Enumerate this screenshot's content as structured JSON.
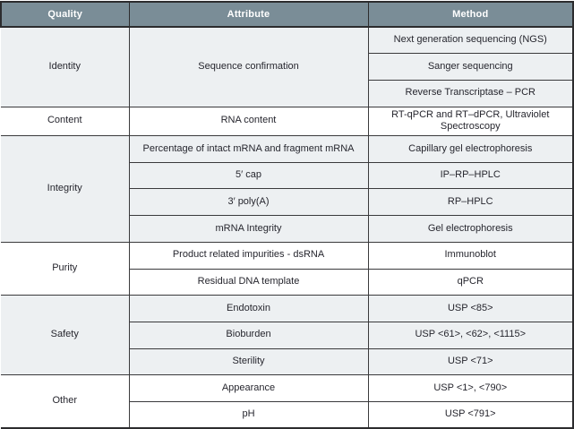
{
  "colors": {
    "header_bg": "#7a8d97",
    "header_text": "#ffffff",
    "alt_row_bg": "#edf0f2",
    "plain_row_bg": "#ffffff",
    "border": "#2c2c2e",
    "body_text": "#26262e"
  },
  "table": {
    "headers": [
      "Quality",
      "Attribute",
      "Method"
    ],
    "groups": [
      {
        "quality": "Identity",
        "rows": [
          {
            "attribute": "Sequence confirmation",
            "method": "Next generation sequencing (NGS)"
          },
          {
            "method": "Sanger sequencing"
          },
          {
            "method": "Reverse Transcriptase – PCR"
          }
        ]
      },
      {
        "quality": "Content",
        "rows": [
          {
            "attribute": "RNA content",
            "method": "RT-qPCR and RT–dPCR, Ultraviolet Spectroscopy"
          }
        ]
      },
      {
        "quality": "Integrity",
        "rows": [
          {
            "attribute": "Percentage of intact mRNA and fragment mRNA",
            "method": "Capillary gel electrophoresis"
          },
          {
            "attribute": "5′ cap",
            "method": "IP–RP–HPLC"
          },
          {
            "attribute": "3′ poly(A)",
            "method": "RP–HPLC"
          },
          {
            "attribute": "mRNA Integrity",
            "method": "Gel electrophoresis"
          }
        ]
      },
      {
        "quality": "Purity",
        "rows": [
          {
            "attribute": "Product related impurities - dsRNA",
            "method": "Immunoblot"
          },
          {
            "attribute": "Residual DNA template",
            "method": "qPCR"
          }
        ]
      },
      {
        "quality": "Safety",
        "rows": [
          {
            "attribute": "Endotoxin",
            "method": "USP <85>"
          },
          {
            "attribute": "Bioburden",
            "method": "USP <61>, <62>, <1115>"
          },
          {
            "attribute": "Sterility",
            "method": "USP <71>"
          }
        ]
      },
      {
        "quality": "Other",
        "rows": [
          {
            "attribute": "Appearance",
            "method": "USP <1>, <790>"
          },
          {
            "attribute": "pH",
            "method": "USP <791>"
          }
        ]
      }
    ]
  }
}
